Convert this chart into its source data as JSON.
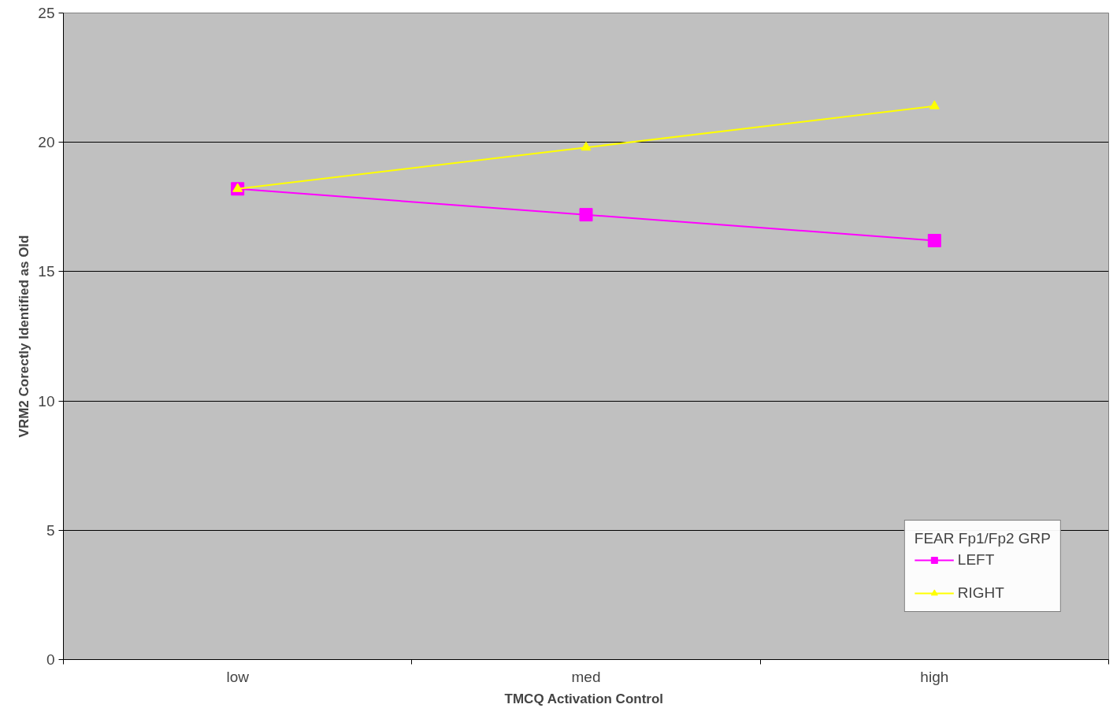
{
  "chart_data": {
    "type": "line",
    "xlabel": "TMCQ  Activation Control",
    "ylabel": "VRM2 Corectly Identified as Old",
    "categories": [
      "low",
      "med",
      "high"
    ],
    "series": [
      {
        "name": "LEFT",
        "color": "#ff00ff",
        "marker": "square",
        "values": [
          18.2,
          17.2,
          16.2
        ]
      },
      {
        "name": "RIGHT",
        "color": "#ffff00",
        "marker": "triangle",
        "values": [
          18.2,
          19.8,
          21.4
        ]
      }
    ],
    "ylim": [
      0,
      25
    ],
    "yticks": [
      0,
      5,
      10,
      15,
      20,
      25
    ],
    "grid": "y",
    "legend": "bottom right",
    "legend_title": "FEAR Fp1/Fp2 GRP"
  }
}
